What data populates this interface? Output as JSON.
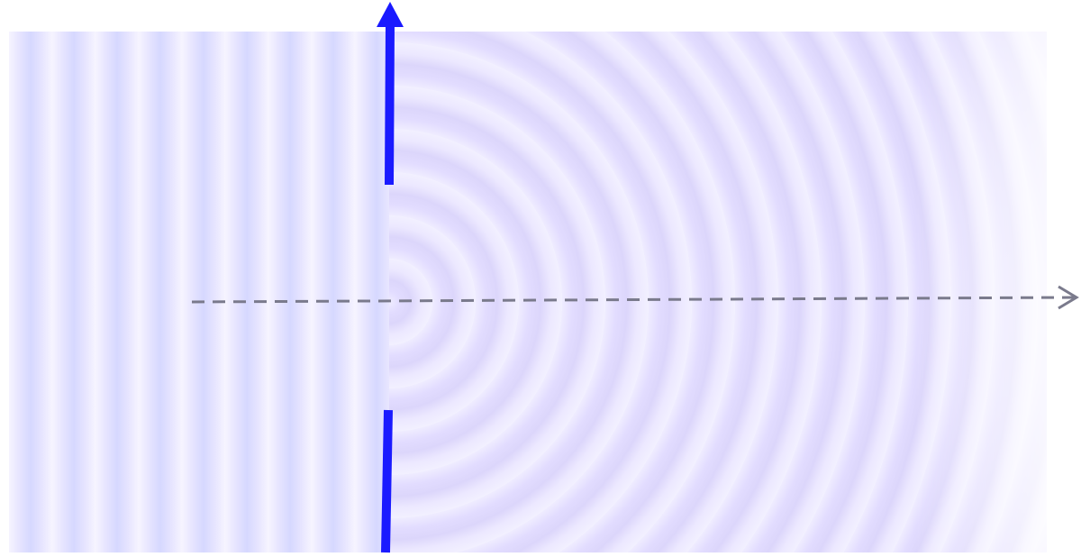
{
  "colors": {
    "barrier": "#1a1aff",
    "axis": "#7a7a8c",
    "wave_dark": "#d6d8ff",
    "wave_light": "#f6f4ff"
  },
  "icons": [
    "barrier-arrow-up",
    "propagation-axis-arrow"
  ]
}
